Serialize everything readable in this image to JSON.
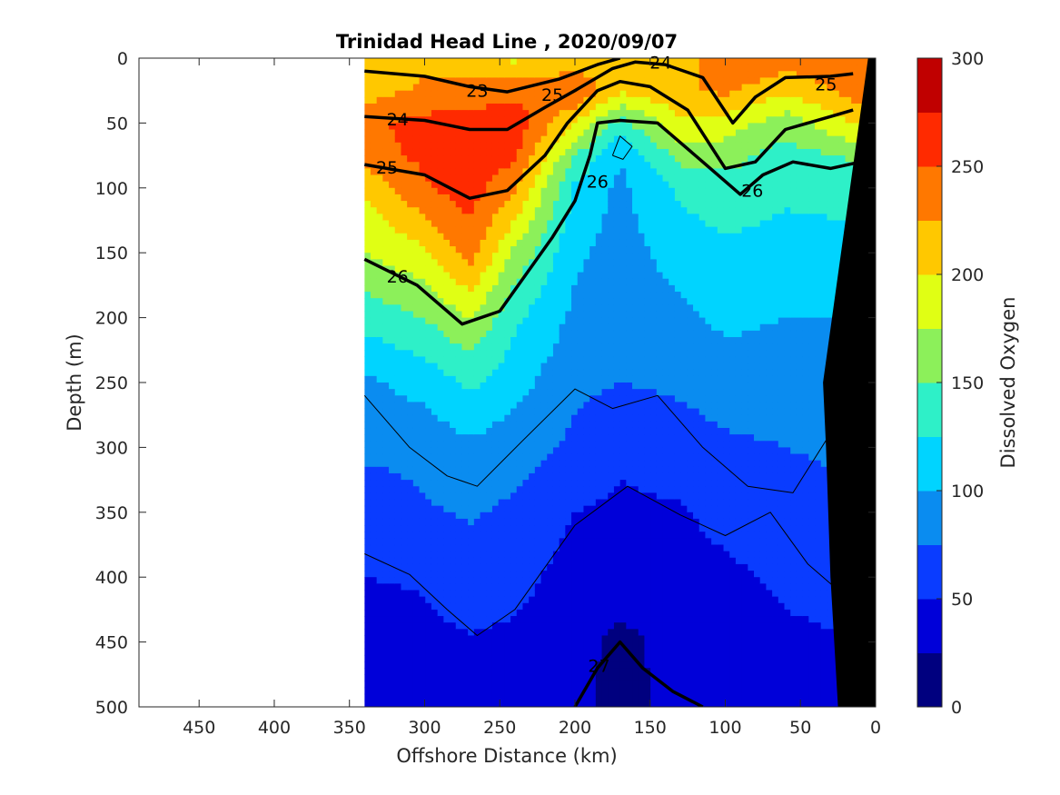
{
  "chart_data": {
    "type": "heatmap",
    "title": "Trinidad Head Line , 2020/09/07",
    "xlabel": "Offshore Distance (km)",
    "ylabel": "Depth (m)",
    "colorbar_label": "Dissolved Oxygen",
    "xlim": [
      490,
      0
    ],
    "x_reversed": true,
    "ylim": [
      0,
      500
    ],
    "y_reversed": true,
    "x_ticks": [
      450,
      400,
      350,
      300,
      250,
      200,
      150,
      100,
      50,
      0
    ],
    "y_ticks": [
      0,
      50,
      100,
      150,
      200,
      250,
      300,
      350,
      400,
      450,
      500
    ],
    "colorbar_ticks": [
      0,
      50,
      100,
      150,
      200,
      250,
      300
    ],
    "colorbar_range": [
      0,
      300
    ],
    "levels": [
      0,
      25,
      50,
      75,
      100,
      125,
      150,
      175,
      200,
      225,
      250,
      275,
      300
    ],
    "level_colors": [
      "#00007f",
      "#0000d9",
      "#0a3cff",
      "#0a8cf0",
      "#00d4ff",
      "#2ef0c8",
      "#8cf05a",
      "#e0ff14",
      "#ffc800",
      "#ff7800",
      "#ff2a00",
      "#c00000"
    ],
    "data_extent_x": [
      340,
      0
    ],
    "oxygen_profiles": {
      "x_km": [
        340,
        300,
        270,
        240,
        200,
        170,
        130,
        100,
        60,
        10
      ],
      "depth_m": [
        0,
        25,
        50,
        75,
        100,
        150,
        200,
        250,
        300,
        350,
        400,
        450,
        500
      ],
      "values": [
        [
          215,
          212,
          245,
          240,
          205,
          175,
          135,
          95,
          80,
          60,
          50,
          40,
          35
        ],
        [
          215,
          230,
          258,
          255,
          248,
          195,
          150,
          110,
          82,
          72,
          52,
          45,
          40
        ],
        [
          205,
          235,
          262,
          265,
          262,
          238,
          175,
          130,
          95,
          78,
          62,
          48,
          45
        ],
        [
          195,
          238,
          268,
          255,
          230,
          170,
          130,
          110,
          85,
          70,
          58,
          45,
          42
        ],
        [
          205,
          250,
          200,
          150,
          120,
          105,
          95,
          80,
          70,
          50,
          40,
          32,
          30
        ],
        [
          220,
          205,
          140,
          100,
          95,
          90,
          85,
          75,
          55,
          45,
          35,
          20,
          18
        ],
        [
          205,
          220,
          195,
          160,
          130,
          110,
          95,
          80,
          62,
          48,
          38,
          32,
          32
        ],
        [
          250,
          230,
          190,
          160,
          140,
          120,
          105,
          88,
          70,
          58,
          45,
          38,
          35
        ],
        [
          240,
          205,
          160,
          140,
          130,
          115,
          100,
          90,
          75,
          62,
          55,
          45,
          40
        ],
        [
          245,
          240,
          205,
          155,
          140,
          110,
          100,
          90,
          82,
          70,
          60,
          50,
          45
        ]
      ]
    },
    "density_contours": [
      {
        "level": "23",
        "points": [
          [
            340,
            10
          ],
          [
            300,
            14
          ],
          [
            270,
            22
          ],
          [
            245,
            26
          ],
          [
            210,
            16
          ],
          [
            185,
            5
          ],
          [
            170,
            0
          ]
        ]
      },
      {
        "level": "24",
        "points": [
          [
            340,
            45
          ],
          [
            300,
            48
          ],
          [
            270,
            55
          ],
          [
            245,
            55
          ],
          [
            220,
            38
          ],
          [
            200,
            25
          ],
          [
            175,
            8
          ],
          [
            160,
            3
          ],
          [
            140,
            5
          ],
          [
            115,
            15
          ],
          [
            95,
            50
          ],
          [
            80,
            30
          ],
          [
            60,
            15
          ],
          [
            30,
            14
          ],
          [
            15,
            12
          ]
        ]
      },
      {
        "level": "25",
        "points": [
          [
            340,
            82
          ],
          [
            300,
            90
          ],
          [
            270,
            108
          ],
          [
            245,
            102
          ],
          [
            220,
            75
          ],
          [
            205,
            50
          ],
          [
            185,
            25
          ],
          [
            170,
            18
          ],
          [
            150,
            22
          ],
          [
            125,
            40
          ],
          [
            100,
            85
          ],
          [
            80,
            80
          ],
          [
            60,
            55
          ],
          [
            30,
            45
          ],
          [
            15,
            40
          ]
        ]
      },
      {
        "level": "26",
        "points": [
          [
            340,
            155
          ],
          [
            305,
            175
          ],
          [
            275,
            205
          ],
          [
            250,
            195
          ],
          [
            215,
            138
          ],
          [
            200,
            110
          ],
          [
            190,
            75
          ],
          [
            185,
            50
          ],
          [
            170,
            48
          ],
          [
            145,
            50
          ],
          [
            115,
            80
          ],
          [
            90,
            105
          ],
          [
            75,
            90
          ],
          [
            55,
            80
          ],
          [
            30,
            85
          ],
          [
            10,
            80
          ]
        ]
      },
      {
        "level": "27",
        "points": [
          [
            200,
            500
          ],
          [
            185,
            470
          ],
          [
            170,
            450
          ],
          [
            155,
            470
          ],
          [
            135,
            488
          ],
          [
            115,
            500
          ]
        ]
      }
    ],
    "thin_contours": [
      {
        "points": [
          [
            340,
            260
          ],
          [
            310,
            300
          ],
          [
            285,
            322
          ],
          [
            265,
            330
          ],
          [
            235,
            295
          ],
          [
            200,
            255
          ],
          [
            175,
            270
          ],
          [
            145,
            260
          ],
          [
            115,
            300
          ],
          [
            85,
            330
          ],
          [
            55,
            335
          ],
          [
            25,
            280
          ],
          [
            10,
            275
          ]
        ]
      },
      {
        "points": [
          [
            340,
            382
          ],
          [
            310,
            398
          ],
          [
            285,
            425
          ],
          [
            265,
            445
          ],
          [
            240,
            425
          ],
          [
            200,
            360
          ],
          [
            165,
            330
          ],
          [
            130,
            352
          ],
          [
            100,
            368
          ],
          [
            70,
            350
          ],
          [
            45,
            390
          ],
          [
            25,
            410
          ]
        ]
      },
      {
        "points": [
          [
            175,
            75
          ],
          [
            170,
            60
          ],
          [
            162,
            68
          ],
          [
            168,
            78
          ],
          [
            175,
            75
          ]
        ]
      }
    ],
    "contour_labels": [
      {
        "text": "23",
        "x": 265,
        "y": 25
      },
      {
        "text": "24",
        "x": 318,
        "y": 47
      },
      {
        "text": "25",
        "x": 325,
        "y": 84
      },
      {
        "text": "26",
        "x": 318,
        "y": 168
      },
      {
        "text": "25",
        "x": 215,
        "y": 28
      },
      {
        "text": "24",
        "x": 143,
        "y": 3
      },
      {
        "text": "26",
        "x": 185,
        "y": 95
      },
      {
        "text": "26",
        "x": 82,
        "y": 102
      },
      {
        "text": "25",
        "x": 33,
        "y": 20
      },
      {
        "text": "27",
        "x": 184,
        "y": 468
      }
    ],
    "seafloor_polygon": [
      [
        0,
        0
      ],
      [
        0,
        500
      ],
      [
        25,
        500
      ],
      [
        30,
        400
      ],
      [
        33,
        300
      ],
      [
        35,
        250
      ],
      [
        5,
        0
      ]
    ],
    "grid": false,
    "colorbar_position": "right"
  }
}
